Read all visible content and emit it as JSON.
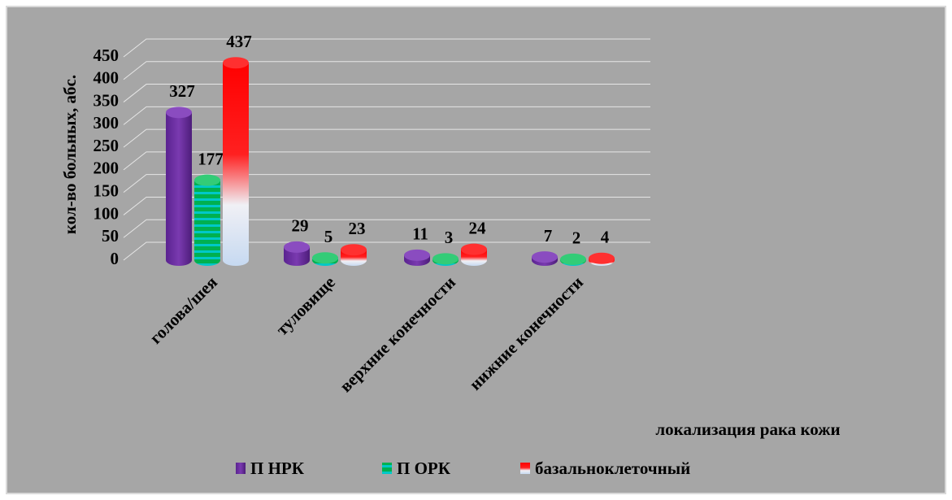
{
  "chart_data": {
    "type": "bar",
    "categories": [
      "голова/шея",
      "туловище",
      "верхние конечности",
      "нижние конечности"
    ],
    "series": [
      {
        "name": "П НРК",
        "color": "#7030a0",
        "values": [
          327,
          29,
          11,
          7
        ]
      },
      {
        "name": "П ОРК",
        "color": "#00b050",
        "values": [
          177,
          5,
          3,
          2
        ]
      },
      {
        "name": "базальноклеточный",
        "color": "#ff0000",
        "values": [
          437,
          23,
          24,
          4
        ]
      }
    ],
    "y_label": "кол-во больных, абс.",
    "x_label": "локализация рака кожи",
    "ylim": [
      0,
      450
    ],
    "yticks": [
      0,
      50,
      100,
      150,
      200,
      250,
      300,
      350,
      400,
      450
    ],
    "grid": true,
    "legend": "bottom"
  }
}
